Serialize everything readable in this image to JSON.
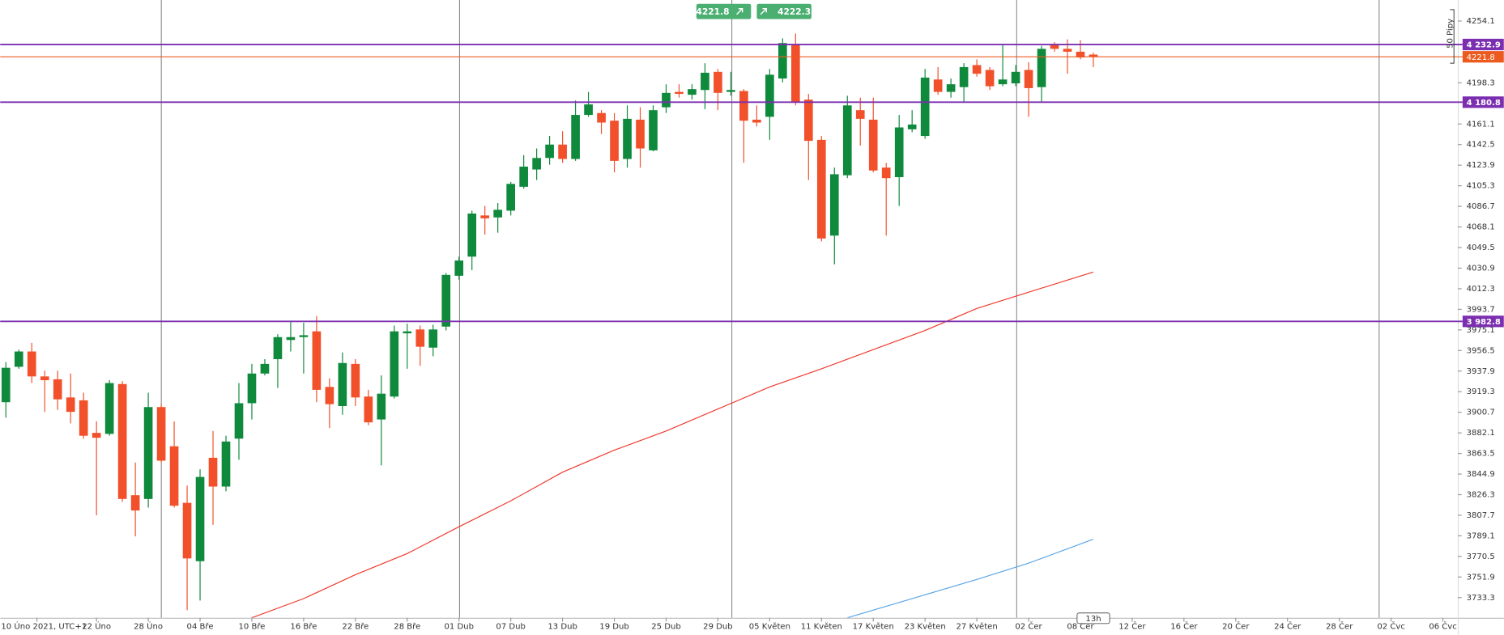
{
  "toolbar": {
    "sell": 4221.8,
    "buy": 4222.3
  },
  "chart_data": {
    "type": "candlestick",
    "up_color": "#0f8a3c",
    "down_color": "#f1502a",
    "open": [
      3909.8,
      3941.8,
      3955.6,
      3933.1,
      3930.5,
      3914.1,
      3911.5,
      3882.1,
      3881.2,
      3926.2,
      3825.8,
      3822.4,
      3905.4,
      3870.0,
      3818.9,
      3766.2,
      3859.6,
      3833.6,
      3876.9,
      3908.9,
      3935.7,
      3948.7,
      3966.0,
      3968.6,
      3973.8,
      3923.6,
      3906.3,
      3944.4,
      3914.9,
      3894.2,
      3914.9,
      3972.0,
      3975.5,
      3959.1,
      3978.1,
      4024.0,
      4041.3,
      4078.5,
      4076.7,
      4082.8,
      4104.4,
      4120.0,
      4130.4,
      4142.5,
      4129.5,
      4169.3,
      4171.0,
      4164.1,
      4129.5,
      4165.0,
      4137.3,
      4176.2,
      4190.1,
      4187.5,
      4191.8,
      4208.2,
      4190.1,
      4190.9,
      4165.0,
      4167.6,
      4202.2,
      4233.3,
      4183.1,
      4146.8,
      4060.3,
      4114.8,
      4173.6,
      4165.0,
      4121.7,
      4113.1,
      4156.3,
      4150.3,
      4201.3,
      4190.1,
      4194.4,
      4214.3,
      4209.9,
      4197.0,
      4197.8,
      4209.9,
      4194.4,
      4233.3,
      4229.0,
      4226.4,
      4223.8
    ],
    "high": [
      3946.1,
      3957.3,
      3963.4,
      3938.3,
      3938.3,
      3935.7,
      3918.4,
      3892.5,
      3929.7,
      3928.8,
      3855.3,
      3918.4,
      3908.0,
      3892.5,
      3834.5,
      3849.2,
      3883.8,
      3879.5,
      3927.1,
      3944.4,
      3948.7,
      3971.2,
      3982.4,
      3981.6,
      3987.6,
      3931.4,
      3954.7,
      3948.7,
      3921.0,
      3934.0,
      3979.0,
      3980.7,
      3979.0,
      3979.8,
      4026.5,
      4041.3,
      4082.8,
      4087.1,
      4089.7,
      4108.7,
      4133.0,
      4139.0,
      4150.3,
      4154.6,
      4182.3,
      4190.1,
      4173.6,
      4171.0,
      4177.9,
      4176.2,
      4177.9,
      4197.0,
      4197.0,
      4197.0,
      4216.0,
      4210.8,
      4208.2,
      4192.6,
      4177.9,
      4210.8,
      4238.5,
      4242.8,
      4188.3,
      4150.3,
      4121.7,
      4186.6,
      4184.9,
      4184.9,
      4126.0,
      4169.3,
      4173.6,
      4210.8,
      4212.5,
      4202.2,
      4216.0,
      4219.5,
      4212.5,
      4232.4,
      4214.3,
      4216.9,
      4231.6,
      4235.0,
      4237.6,
      4236.8,
      4225.5
    ],
    "low": [
      3895.9,
      3940.0,
      3927.1,
      3901.1,
      3902.8,
      3890.7,
      3876.9,
      3807.7,
      3879.5,
      3819.8,
      3788.6,
      3814.6,
      3855.3,
      3814.6,
      3722.0,
      3730.7,
      3799.0,
      3829.3,
      3857.9,
      3894.2,
      3934.0,
      3922.7,
      3955.6,
      3935.7,
      3909.8,
      3886.4,
      3898.5,
      3906.3,
      3889.0,
      3852.7,
      3913.2,
      3940.0,
      3942.6,
      3951.3,
      3974.6,
      4020.5,
      4029.1,
      4061.2,
      4062.9,
      4078.5,
      4102.7,
      4110.5,
      4124.3,
      4126.0,
      4127.8,
      4167.6,
      4152.0,
      4117.4,
      4121.7,
      4121.7,
      4136.4,
      4171.0,
      4184.9,
      4183.1,
      4174.5,
      4173.6,
      4186.6,
      4126.0,
      4158.9,
      4146.8,
      4198.7,
      4177.9,
      4110.5,
      4055.1,
      4034.3,
      4112.2,
      4141.6,
      4117.4,
      4060.3,
      4087.1,
      4153.7,
      4147.7,
      4187.5,
      4184.9,
      4181.4,
      4203.9,
      4191.8,
      4195.2,
      4195.2,
      4167.6,
      4180.5,
      4226.4,
      4206.5,
      4219.5,
      4212.5
    ],
    "close": [
      3940.9,
      3955.6,
      3933.1,
      3929.7,
      3912.4,
      3901.1,
      3879.5,
      3877.7,
      3927.1,
      3822.4,
      3812.0,
      3905.4,
      3857.0,
      3816.3,
      3768.7,
      3842.3,
      3833.6,
      3874.3,
      3908.9,
      3935.7,
      3944.4,
      3968.6,
      3968.6,
      3970.3,
      3921.0,
      3908.0,
      3945.2,
      3914.1,
      3891.6,
      3917.5,
      3973.8,
      3973.8,
      3959.9,
      3975.5,
      4024.8,
      4037.8,
      4080.2,
      4075.9,
      4083.6,
      4107.0,
      4122.6,
      4130.4,
      4142.5,
      4129.5,
      4169.3,
      4178.8,
      4162.4,
      4127.8,
      4165.8,
      4139.0,
      4173.6,
      4189.2,
      4188.3,
      4192.6,
      4207.4,
      4189.2,
      4191.8,
      4164.1,
      4162.4,
      4205.6,
      4234.2,
      4180.5,
      4145.9,
      4057.7,
      4115.7,
      4177.9,
      4165.8,
      4119.1,
      4112.2,
      4158.0,
      4160.6,
      4203.0,
      4190.1,
      4197.0,
      4212.5,
      4206.5,
      4195.2,
      4201.3,
      4208.2,
      4193.5,
      4229.0,
      4229.0,
      4226.4,
      4221.2,
      4221.8
    ],
    "moving_averages": [
      {
        "color": "#f03a2e",
        "x": [
          19,
          23,
          27,
          31,
          35,
          39,
          43,
          47,
          51,
          55,
          59,
          63,
          67,
          71,
          75,
          79,
          84
        ],
        "values": [
          3715.1,
          3732.4,
          3754.0,
          3773.1,
          3797.3,
          3820.7,
          3846.6,
          3866.5,
          3883.8,
          3903.7,
          3923.6,
          3940.0,
          3957.3,
          3974.6,
          3994.5,
          4009.2,
          4027.4
        ]
      },
      {
        "color": "#5aa6e6",
        "x": [
          65,
          70,
          75,
          79,
          84
        ],
        "values": [
          3715.1,
          3732.4,
          3749.7,
          3764.4,
          3786.1
        ]
      }
    ],
    "levels": [
      {
        "value": 4232.9,
        "label": "4 232.9",
        "color": "#7b2fb0"
      },
      {
        "value": 4180.8,
        "label": "4 180.8",
        "color": "#7b2fb0"
      },
      {
        "value": 3982.8,
        "label": "3 982.8",
        "color": "#7b2fb0"
      }
    ],
    "price": {
      "value": 4221.8,
      "color": "#ec5a1e"
    },
    "pip_label": "50 Pipy",
    "time_label": "13h",
    "xlim": [
      -0.44,
      112.15
    ],
    "xticks": [
      {
        "value": 2.4,
        "label": "10 Úno 2021, UTC+1"
      },
      {
        "value": 7,
        "label": "22 Úno"
      },
      {
        "value": 11,
        "label": "28 Úno"
      },
      {
        "value": 15,
        "label": "04 Bře"
      },
      {
        "value": 19,
        "label": "10 Bře"
      },
      {
        "value": 23,
        "label": "16 Bře"
      },
      {
        "value": 27,
        "label": "22 Bře"
      },
      {
        "value": 31,
        "label": "28 Bře"
      },
      {
        "value": 35,
        "label": "01 Dub"
      },
      {
        "value": 39,
        "label": "07 Dub"
      },
      {
        "value": 43,
        "label": "13 Dub"
      },
      {
        "value": 47,
        "label": "19 Dub"
      },
      {
        "value": 51,
        "label": "25 Dub"
      },
      {
        "value": 55,
        "label": "29 Dub"
      },
      {
        "value": 59,
        "label": "05 Květen"
      },
      {
        "value": 63,
        "label": "11 Květen"
      },
      {
        "value": 67,
        "label": "17 Květen"
      },
      {
        "value": 71,
        "label": "23 Květen"
      },
      {
        "value": 75,
        "label": "27 Květen"
      },
      {
        "value": 79,
        "label": "02 Čer"
      },
      {
        "value": 83,
        "label": "08 Čer"
      },
      {
        "value": 87,
        "label": "12 Čer"
      },
      {
        "value": 91,
        "label": "16 Čer"
      },
      {
        "value": 95,
        "label": "20 Čer"
      },
      {
        "value": 99,
        "label": "24 Čer"
      },
      {
        "value": 103,
        "label": "28 Čer"
      },
      {
        "value": 107,
        "label": "02 Čvc"
      },
      {
        "value": 111,
        "label": "06 Čvc"
      }
    ],
    "ylim": [
      3715.1,
      4273.1
    ],
    "yticks": [
      4254.1,
      4198.3,
      4161.1,
      4142.5,
      4123.9,
      4105.3,
      4086.7,
      4068.1,
      4049.5,
      4030.9,
      4012.3,
      3993.7,
      3975.1,
      3956.5,
      3937.9,
      3919.3,
      3900.7,
      3882.1,
      3863.5,
      3844.9,
      3826.3,
      3807.7,
      3789.1,
      3770.5,
      3751.9,
      3733.3
    ]
  }
}
